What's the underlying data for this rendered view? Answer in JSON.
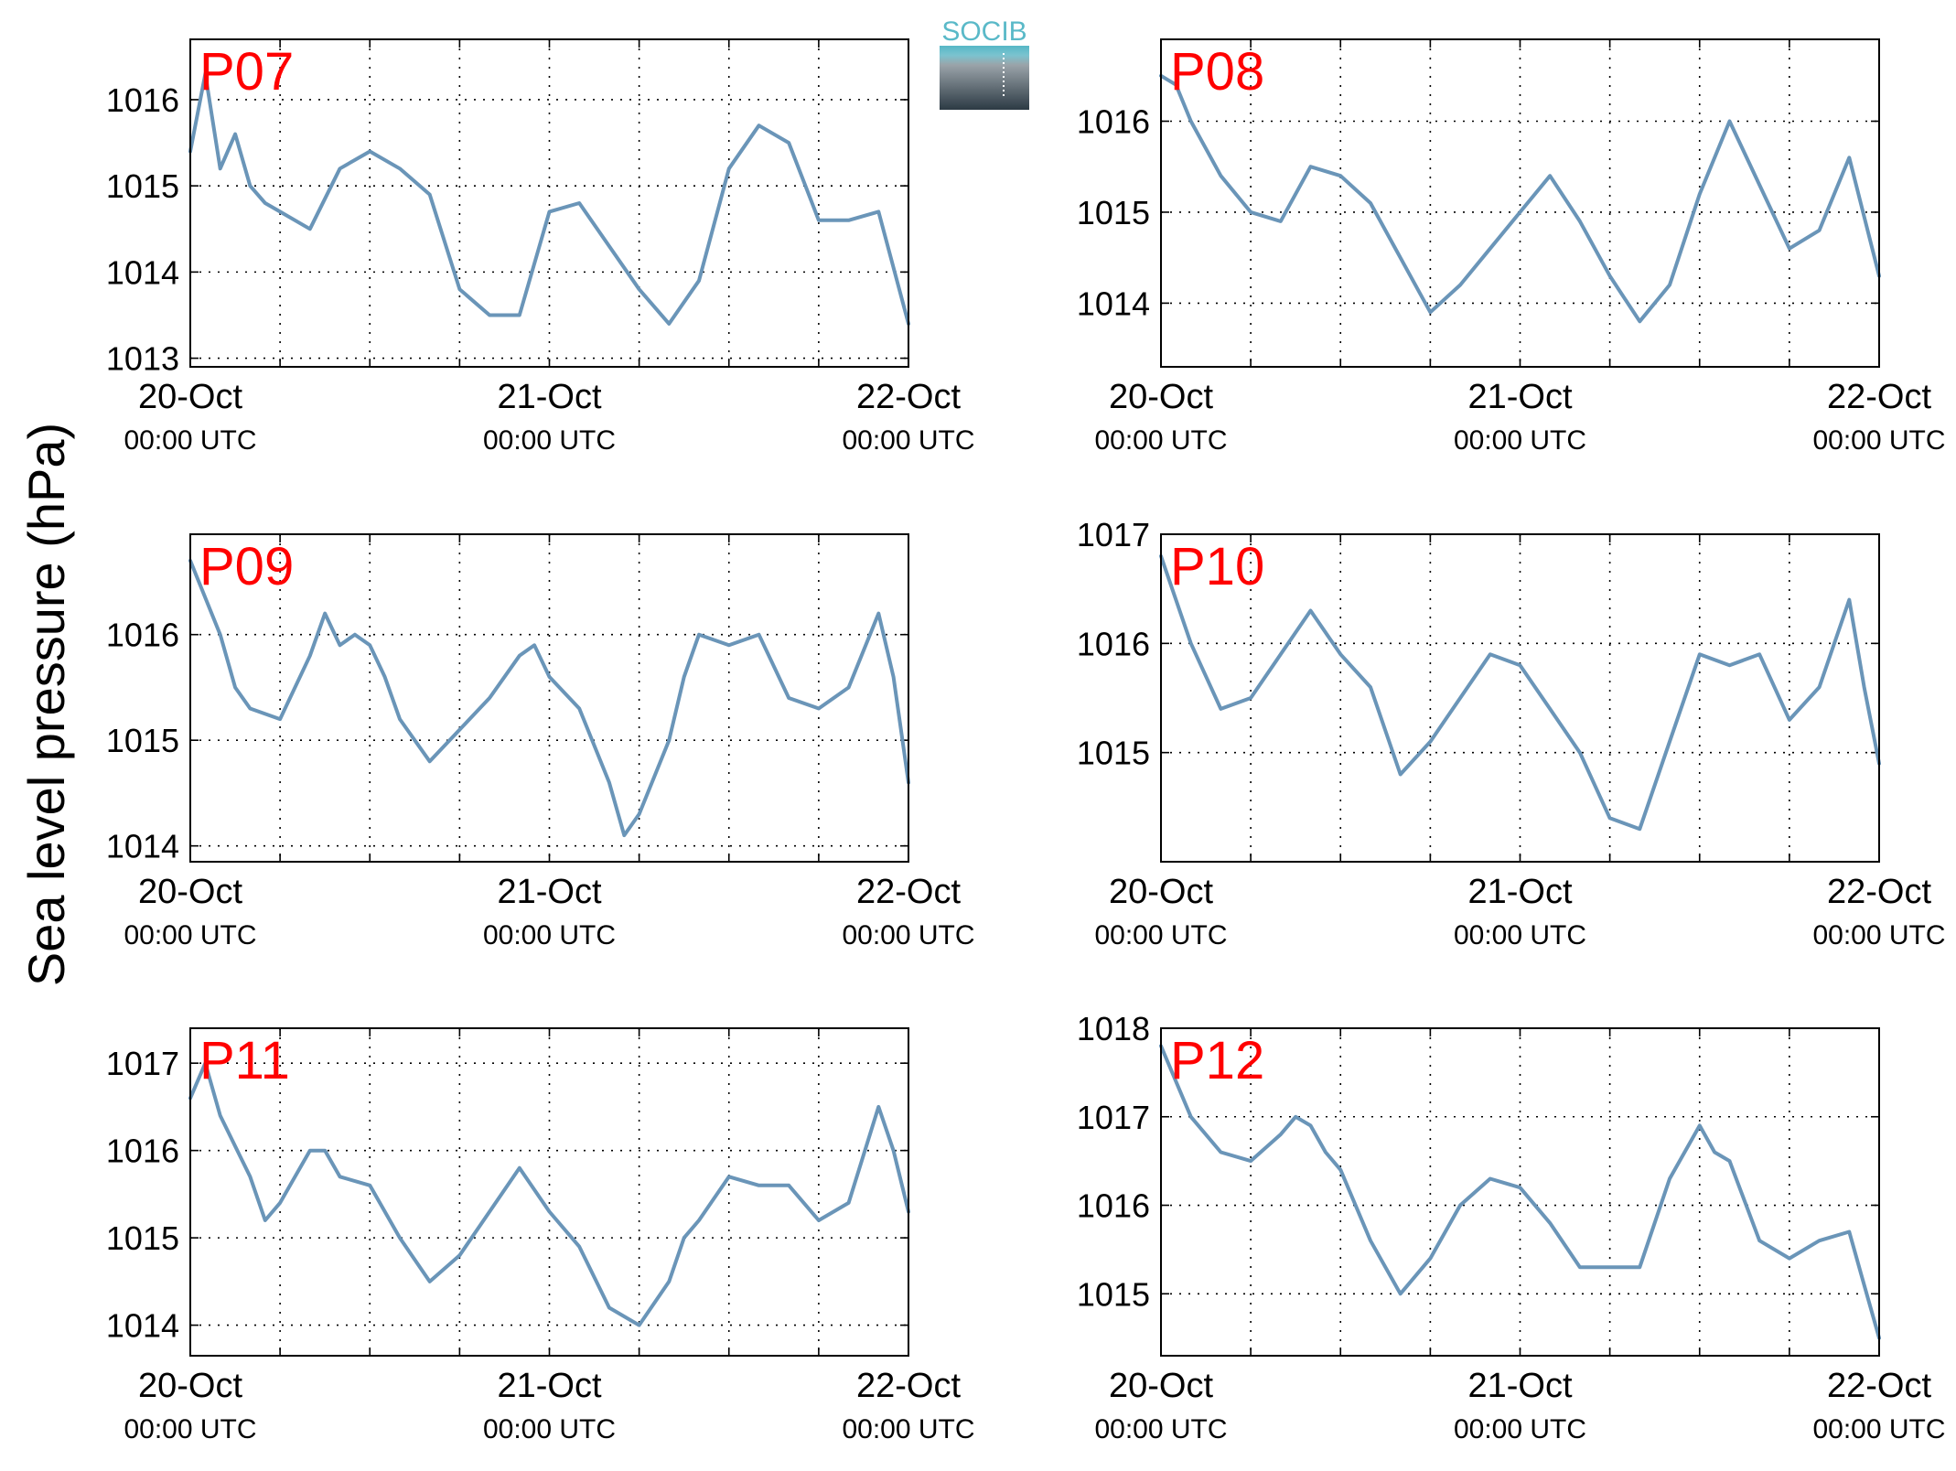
{
  "figure": {
    "ylabel": "Sea level pressure (hPa)",
    "logo_text": "SOCIB",
    "line_color": "#6a95b8",
    "title_color": "#ff0000",
    "grid": true,
    "x_tick_labels": [
      {
        "date": "20-Oct",
        "time": "00:00 UTC"
      },
      {
        "date": "21-Oct",
        "time": "00:00 UTC"
      },
      {
        "date": "22-Oct",
        "time": "00:00 UTC"
      }
    ]
  },
  "chart_data": [
    {
      "type": "line",
      "title": "P07",
      "x_range": [
        "20-Oct 00:00 UTC",
        "22-Oct 00:00 UTC"
      ],
      "x_hours": [
        0,
        1,
        2,
        3,
        4,
        5,
        6,
        8,
        10,
        12,
        14,
        16,
        18,
        20,
        22,
        24,
        26,
        28,
        30,
        32,
        34,
        36,
        38,
        40,
        42,
        44,
        46,
        48
      ],
      "y": [
        1015.4,
        1016.3,
        1015.2,
        1015.6,
        1015.0,
        1014.8,
        1014.7,
        1014.5,
        1015.2,
        1015.4,
        1015.2,
        1014.9,
        1013.8,
        1013.5,
        1013.5,
        1014.7,
        1014.8,
        1014.3,
        1013.8,
        1013.4,
        1013.9,
        1015.2,
        1015.7,
        1015.5,
        1014.6,
        1014.6,
        1014.7,
        1013.4
      ],
      "ylim": [
        1012.9,
        1016.7
      ],
      "yticks": [
        1013,
        1014,
        1015,
        1016
      ]
    },
    {
      "type": "line",
      "title": "P08",
      "x_range": [
        "20-Oct 00:00 UTC",
        "22-Oct 00:00 UTC"
      ],
      "x_hours": [
        0,
        1,
        2,
        4,
        6,
        8,
        10,
        12,
        14,
        16,
        18,
        20,
        22,
        24,
        26,
        28,
        30,
        32,
        34,
        36,
        38,
        40,
        42,
        44,
        46,
        48
      ],
      "y": [
        1016.5,
        1016.4,
        1016.0,
        1015.4,
        1015.0,
        1014.9,
        1015.5,
        1015.4,
        1015.1,
        1014.5,
        1013.9,
        1014.2,
        1014.6,
        1015.0,
        1015.4,
        1014.9,
        1014.3,
        1013.8,
        1014.2,
        1015.2,
        1016.0,
        1015.3,
        1014.6,
        1014.8,
        1015.6,
        1014.3
      ],
      "ylim": [
        1013.3,
        1016.9
      ],
      "yticks": [
        1014,
        1015,
        1016
      ]
    },
    {
      "type": "line",
      "title": "P09",
      "x_range": [
        "20-Oct 00:00 UTC",
        "22-Oct 00:00 UTC"
      ],
      "x_hours": [
        0,
        2,
        3,
        4,
        6,
        8,
        9,
        10,
        11,
        12,
        13,
        14,
        16,
        18,
        20,
        22,
        23,
        24,
        26,
        28,
        29,
        30,
        32,
        33,
        34,
        36,
        38,
        40,
        42,
        44,
        46,
        47,
        48
      ],
      "y": [
        1016.7,
        1016.0,
        1015.5,
        1015.3,
        1015.2,
        1015.8,
        1016.2,
        1015.9,
        1016.0,
        1015.9,
        1015.6,
        1015.2,
        1014.8,
        1015.1,
        1015.4,
        1015.8,
        1015.9,
        1015.6,
        1015.3,
        1014.6,
        1014.1,
        1014.3,
        1015.0,
        1015.6,
        1016.0,
        1015.9,
        1016.0,
        1015.4,
        1015.3,
        1015.5,
        1016.2,
        1015.6,
        1014.6
      ],
      "ylim": [
        1013.85,
        1016.95
      ],
      "yticks": [
        1014,
        1015,
        1016
      ]
    },
    {
      "type": "line",
      "title": "P10",
      "x_range": [
        "20-Oct 00:00 UTC",
        "22-Oct 00:00 UTC"
      ],
      "x_hours": [
        0,
        2,
        4,
        6,
        8,
        10,
        12,
        14,
        16,
        18,
        20,
        22,
        24,
        26,
        28,
        30,
        32,
        34,
        36,
        38,
        40,
        42,
        44,
        46,
        47,
        48
      ],
      "y": [
        1016.8,
        1016.0,
        1015.4,
        1015.5,
        1015.9,
        1016.3,
        1015.9,
        1015.6,
        1014.8,
        1015.1,
        1015.5,
        1015.9,
        1015.8,
        1015.4,
        1015.0,
        1014.4,
        1014.3,
        1015.1,
        1015.9,
        1015.8,
        1015.9,
        1015.3,
        1015.6,
        1016.4,
        1015.6,
        1014.9
      ],
      "ylim": [
        1014.0,
        1017.0
      ],
      "yticks": [
        1015,
        1016,
        1017
      ]
    },
    {
      "type": "line",
      "title": "P11",
      "x_range": [
        "20-Oct 00:00 UTC",
        "22-Oct 00:00 UTC"
      ],
      "x_hours": [
        0,
        1,
        2,
        4,
        5,
        6,
        8,
        9,
        10,
        12,
        14,
        16,
        18,
        20,
        22,
        24,
        26,
        28,
        30,
        32,
        33,
        34,
        36,
        38,
        40,
        42,
        44,
        46,
        47,
        48
      ],
      "y": [
        1016.6,
        1017.0,
        1016.4,
        1015.7,
        1015.2,
        1015.4,
        1016.0,
        1016.0,
        1015.7,
        1015.6,
        1015.0,
        1014.5,
        1014.8,
        1015.3,
        1015.8,
        1015.3,
        1014.9,
        1014.2,
        1014.0,
        1014.5,
        1015.0,
        1015.2,
        1015.7,
        1015.6,
        1015.6,
        1015.2,
        1015.4,
        1016.5,
        1016.0,
        1015.3
      ],
      "ylim": [
        1013.65,
        1017.4
      ],
      "yticks": [
        1014,
        1015,
        1016,
        1017
      ]
    },
    {
      "type": "line",
      "title": "P12",
      "x_range": [
        "20-Oct 00:00 UTC",
        "22-Oct 00:00 UTC"
      ],
      "x_hours": [
        0,
        2,
        4,
        6,
        8,
        9,
        10,
        11,
        12,
        14,
        16,
        18,
        20,
        22,
        24,
        26,
        28,
        30,
        32,
        34,
        36,
        37,
        38,
        40,
        42,
        44,
        46,
        47,
        48
      ],
      "y": [
        1017.8,
        1017.0,
        1016.6,
        1016.5,
        1016.8,
        1017.0,
        1016.9,
        1016.6,
        1016.4,
        1015.6,
        1015.0,
        1015.4,
        1016.0,
        1016.3,
        1016.2,
        1015.8,
        1015.3,
        1015.3,
        1015.3,
        1016.3,
        1016.9,
        1016.6,
        1016.5,
        1015.6,
        1015.4,
        1015.6,
        1015.7,
        1015.1,
        1014.5
      ],
      "ylim": [
        1014.3,
        1018.0
      ],
      "yticks": [
        1015,
        1016,
        1017,
        1018
      ]
    }
  ]
}
